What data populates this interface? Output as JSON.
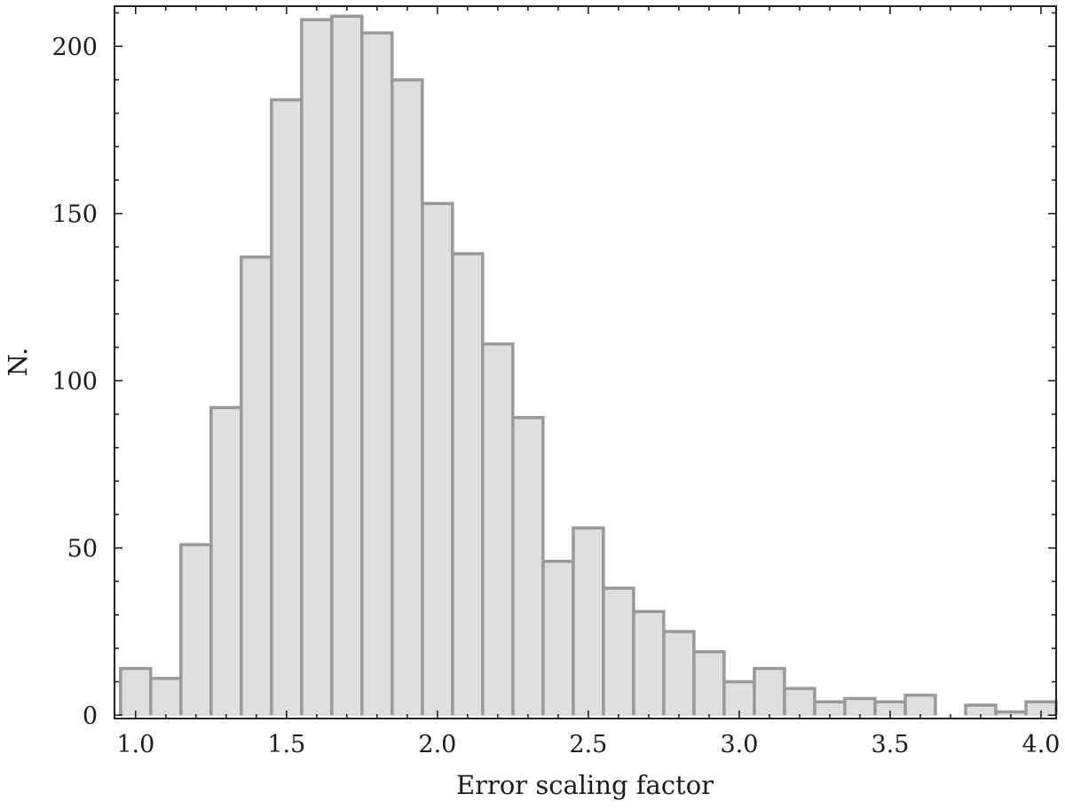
{
  "chart_data": {
    "type": "bar",
    "subtype": "histogram",
    "xlabel": "Error scaling factor",
    "ylabel": "N.",
    "xlim": [
      0.93,
      4.05
    ],
    "ylim": [
      -1,
      212
    ],
    "bin_width": 0.1,
    "x_ticks": [
      1.0,
      1.5,
      2.0,
      2.5,
      3.0,
      3.5,
      4.0
    ],
    "x_tick_labels": [
      "1.0",
      "1.5",
      "2.0",
      "2.5",
      "3.0",
      "3.5",
      "4.0"
    ],
    "y_ticks": [
      0,
      50,
      100,
      150,
      200
    ],
    "y_tick_labels": [
      "0",
      "50",
      "100",
      "150",
      "200"
    ],
    "bin_starts": [
      0.95,
      1.05,
      1.15,
      1.25,
      1.35,
      1.45,
      1.55,
      1.65,
      1.75,
      1.85,
      1.95,
      2.05,
      2.15,
      2.25,
      2.35,
      2.45,
      2.55,
      2.65,
      2.75,
      2.85,
      2.95,
      3.05,
      3.15,
      3.25,
      3.35,
      3.45,
      3.55,
      3.65,
      3.75,
      3.85,
      3.95
    ],
    "values": [
      14,
      11,
      51,
      92,
      137,
      184,
      208,
      209,
      204,
      190,
      153,
      138,
      111,
      89,
      46,
      56,
      38,
      31,
      25,
      19,
      10,
      14,
      8,
      4,
      5,
      4,
      6,
      0,
      3,
      1,
      4
    ],
    "grid": false,
    "legend": "none",
    "colors": {
      "fill": "#dedede",
      "edge": "#8c8c8c",
      "frame": "#222222"
    }
  }
}
